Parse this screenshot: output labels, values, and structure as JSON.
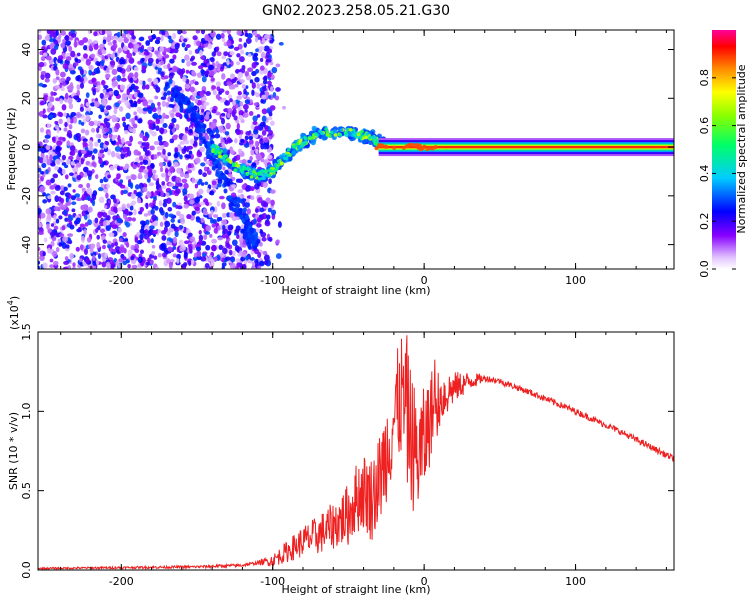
{
  "title": "GN02.2023.258.05.21.G30",
  "colors": {
    "snr_line": "#ee2020",
    "frame": "#000000"
  },
  "chart_data": [
    {
      "type": "heatmap",
      "xlabel": "Height of straight line (km)",
      "ylabel": "Frequency (Hz)",
      "xlim": [
        -255,
        165
      ],
      "ylim": [
        -50,
        48
      ],
      "x_ticks": [
        {
          "v": -200,
          "label": "-200"
        },
        {
          "v": -100,
          "label": "-100"
        },
        {
          "v": 0,
          "label": "0"
        },
        {
          "v": 100,
          "label": "100"
        }
      ],
      "y_ticks": [
        {
          "v": -40,
          "label": "-40"
        },
        {
          "v": -20,
          "label": "-20"
        },
        {
          "v": 0,
          "label": "0"
        },
        {
          "v": 20,
          "label": "20"
        },
        {
          "v": 40,
          "label": "40"
        }
      ],
      "colorbar": {
        "label": "Normalized spectral amplitude",
        "range": [
          0,
          1
        ],
        "colormap": "rainbow (white-purple-blue-cyan-green-yellow-orange-red-magenta)",
        "ticks": [
          {
            "v": 0.0,
            "label": "0.0"
          },
          {
            "v": 0.2,
            "label": "0.2"
          },
          {
            "v": 0.4,
            "label": "0.4"
          },
          {
            "v": 0.6,
            "label": "0.6"
          },
          {
            "v": 0.8,
            "label": "0.8"
          }
        ]
      },
      "features": [
        {
          "desc": "noise",
          "x_range": [
            -255,
            -100
          ],
          "y_range": [
            -50,
            48
          ],
          "amplitude": [
            0.05,
            0.3
          ]
        },
        {
          "desc": "descending track",
          "points": [
            [
              -170,
              25
            ],
            [
              -150,
              12
            ],
            [
              -135,
              -10
            ],
            [
              -120,
              -28
            ],
            [
              -112,
              -40
            ]
          ],
          "amplitude": 0.25
        },
        {
          "desc": "rising track",
          "points": [
            [
              -140,
              0
            ],
            [
              -125,
              -8
            ],
            [
              -110,
              -12
            ],
            [
              -100,
              -10
            ],
            [
              -85,
              0
            ],
            [
              -70,
              6
            ],
            [
              -50,
              6
            ],
            [
              -35,
              4
            ],
            [
              -25,
              0
            ],
            [
              -10,
              0
            ]
          ],
          "amplitude": 0.6
        },
        {
          "desc": "steady line",
          "x_range": [
            -30,
            165
          ],
          "y": 0,
          "amplitude": 0.9
        }
      ]
    },
    {
      "type": "line",
      "xlabel": "Height of straight line (km)",
      "ylabel": "SNR (10 * v/v)",
      "y_multiplier": "(x10",
      "y_multiplier_exp": "4",
      "xlim": [
        -255,
        165
      ],
      "ylim": [
        0,
        1.5
      ],
      "x_ticks": [
        {
          "v": -200,
          "label": "-200"
        },
        {
          "v": -100,
          "label": "-100"
        },
        {
          "v": 0,
          "label": "0"
        },
        {
          "v": 100,
          "label": "100"
        }
      ],
      "y_ticks": [
        {
          "v": 0.0,
          "label": "0.0"
        },
        {
          "v": 0.5,
          "label": "0.5"
        },
        {
          "v": 1.0,
          "label": "1.0"
        },
        {
          "v": 1.5,
          "label": "1.5"
        }
      ],
      "series": [
        {
          "color": "#ee2020",
          "envelope": {
            "x": [
              -255,
              -200,
              -150,
              -120,
              -100,
              -90,
              -80,
              -70,
              -60,
              -50,
              -45,
              -40,
              -35,
              -30,
              -25,
              -20,
              -15,
              -10,
              -5,
              0,
              5,
              10,
              20,
              30,
              40,
              50,
              70,
              100,
              130,
              165
            ],
            "y": [
              0.01,
              0.015,
              0.02,
              0.03,
              0.06,
              0.12,
              0.18,
              0.22,
              0.28,
              0.35,
              0.45,
              0.5,
              0.45,
              0.55,
              0.75,
              0.95,
              1.1,
              0.9,
              0.7,
              0.8,
              1.0,
              1.08,
              1.15,
              1.19,
              1.21,
              1.19,
              1.12,
              1.0,
              0.87,
              0.7
            ]
          },
          "noise_amplitude": {
            "x": [
              -255,
              -110,
              -100,
              -80,
              -60,
              -40,
              -20,
              -10,
              0,
              10,
              20,
              40,
              165
            ],
            "y": [
              0.005,
              0.01,
              0.04,
              0.1,
              0.15,
              0.25,
              0.35,
              0.45,
              0.35,
              0.2,
              0.1,
              0.02,
              0.02
            ]
          }
        }
      ]
    }
  ]
}
